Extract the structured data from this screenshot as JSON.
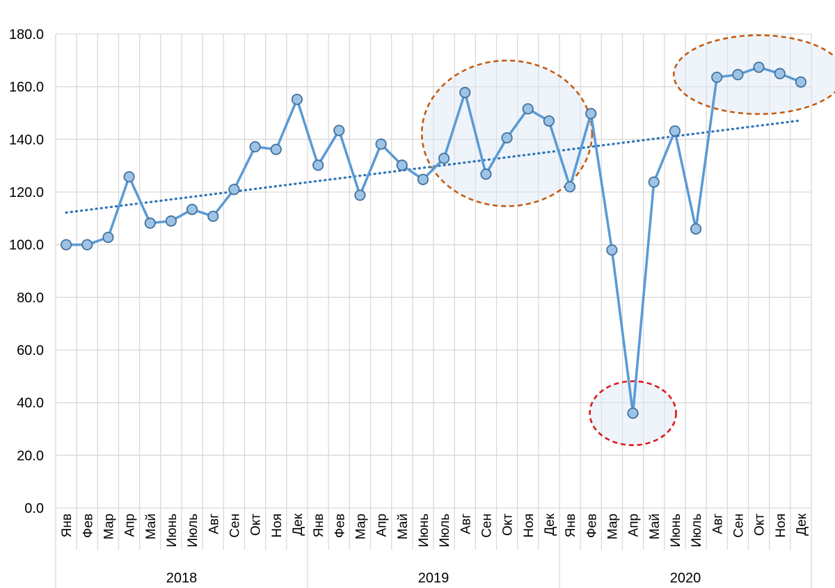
{
  "chart_data": {
    "type": "line",
    "title": "",
    "xlabel": "",
    "ylabel": "",
    "ylim": [
      0,
      180
    ],
    "yticks": [
      "0.0",
      "20.0",
      "40.0",
      "60.0",
      "80.0",
      "100.0",
      "120.0",
      "140.0",
      "160.0",
      "180.0"
    ],
    "grid": true,
    "legend": "none",
    "months": [
      "Янв",
      "Фев",
      "Мар",
      "Апр",
      "Май",
      "Июнь",
      "Июль",
      "Авг",
      "Сен",
      "Окт",
      "Ноя",
      "Дек",
      "Янв",
      "Фев",
      "Мар",
      "Апр",
      "Май",
      "Июнь",
      "Июль",
      "Авг",
      "Сен",
      "Окт",
      "Ноя",
      "Дек",
      "Янв",
      "Фев",
      "Мар",
      "Апр",
      "Май",
      "Июнь",
      "Июль",
      "Авг",
      "Сен",
      "Окт",
      "Ноя",
      "Дек"
    ],
    "years": [
      {
        "label": "2018",
        "start": 0,
        "count": 12
      },
      {
        "label": "2019",
        "start": 12,
        "count": 12
      },
      {
        "label": "2020",
        "start": 24,
        "count": 12
      }
    ],
    "series": [
      {
        "values": [
          100.0,
          100.0,
          102.8,
          125.8,
          108.2,
          109.0,
          113.4,
          110.8,
          121.0,
          137.2,
          136.2,
          155.2,
          130.2,
          143.4,
          118.8,
          138.2,
          130.2,
          124.8,
          132.8,
          157.8,
          126.8,
          140.6,
          151.6,
          147.0,
          122.0,
          149.8,
          98.0,
          36.0,
          123.8,
          143.2,
          106.0,
          163.6,
          164.6,
          167.4,
          165.0,
          161.8
        ],
        "color": "#5b9bd5",
        "marker_fill": "#9dc3e6",
        "marker_edge": "#41719c"
      }
    ],
    "trendline": {
      "start": 112.2,
      "end": 147.2,
      "color": "#2e75b6",
      "style": "dotted"
    },
    "annotations": [
      {
        "type": "ellipse",
        "around_months": [
          19,
          23
        ],
        "color": "#c55a11"
      },
      {
        "type": "ellipse",
        "around_months": [
          27,
          27
        ],
        "color": "#e0161b"
      },
      {
        "type": "ellipse",
        "around_months": [
          31,
          35
        ],
        "color": "#c55a11"
      }
    ]
  }
}
